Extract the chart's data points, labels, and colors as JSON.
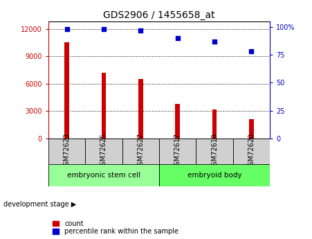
{
  "title": "GDS2906 / 1455658_at",
  "samples": [
    "GSM72623",
    "GSM72625",
    "GSM72627",
    "GSM72617",
    "GSM72619",
    "GSM72620"
  ],
  "counts": [
    10500,
    7200,
    6500,
    3800,
    3200,
    2100
  ],
  "percentiles": [
    98,
    98,
    97,
    90,
    87,
    78
  ],
  "bar_color": "#cc0000",
  "dot_color": "#0000cc",
  "left_yticks": [
    0,
    3000,
    6000,
    9000,
    12000
  ],
  "left_ylim": [
    0,
    12800
  ],
  "right_yticks": [
    0,
    25,
    50,
    75,
    100
  ],
  "right_ylim": [
    0,
    105
  ],
  "groups": [
    {
      "label": "embryonic stem cell",
      "start": 0,
      "end": 3,
      "color": "#99ff99"
    },
    {
      "label": "embryoid body",
      "start": 3,
      "end": 6,
      "color": "#66ff66"
    }
  ],
  "group_label": "development stage",
  "legend_count_label": "count",
  "legend_percentile_label": "percentile rank within the sample",
  "title_fontsize": 10,
  "tick_label_fontsize": 7,
  "background_color": "#ffffff",
  "plot_bg_color": "#ffffff",
  "xtick_bg_color": "#d0d0d0"
}
